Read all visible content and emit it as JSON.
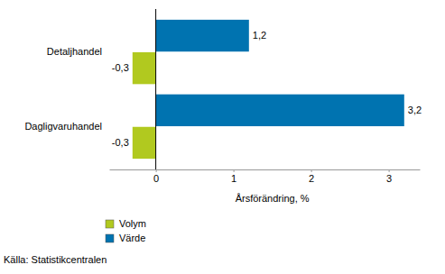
{
  "chart_data": {
    "type": "bar",
    "orientation": "horizontal",
    "categories": [
      "Detaljhandel",
      "Dagligvaruhandel"
    ],
    "series": [
      {
        "name": "Volym",
        "color": "#b1c91f",
        "values": [
          -0.3,
          -0.3
        ],
        "value_labels": [
          "-0,3",
          "-0,3"
        ]
      },
      {
        "name": "Värde",
        "color": "#0073b0",
        "values": [
          1.2,
          3.2
        ],
        "value_labels": [
          "1,2",
          "3,2"
        ]
      }
    ],
    "xlim": [
      -0.6,
      3.4
    ],
    "xticks": [
      0,
      1,
      2,
      3
    ],
    "x_label": "Årsförändring, %",
    "data_labels": true,
    "legend": "bottom-left",
    "source": "Källa: Statistikcentralen"
  }
}
